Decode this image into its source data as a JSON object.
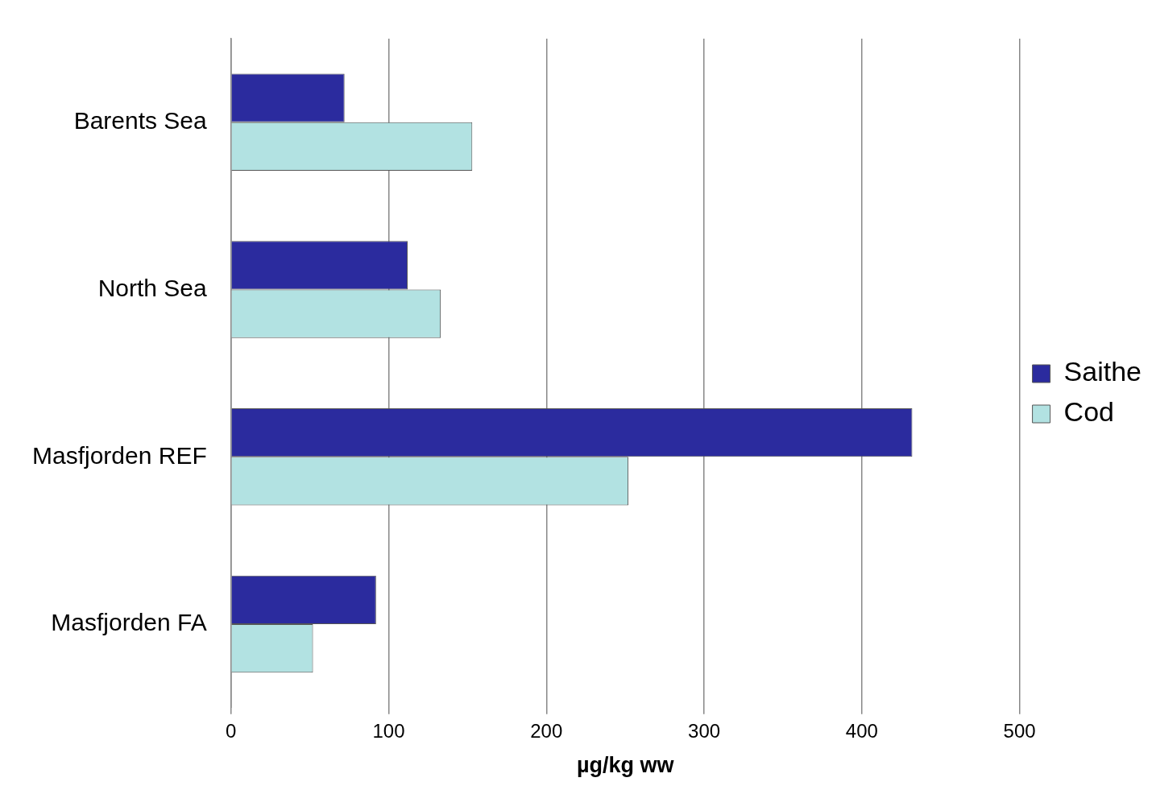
{
  "chart_data": {
    "type": "bar",
    "orientation": "horizontal",
    "categories": [
      "Barents Sea",
      "North Sea",
      "Masfjorden REF",
      "Masfjorden FA"
    ],
    "series": [
      {
        "name": "Saithe",
        "color": "#2b2b9e",
        "values": [
          72,
          112,
          432,
          92
        ]
      },
      {
        "name": "Cod",
        "color": "#b2e2e2",
        "values": [
          153,
          133,
          252,
          52
        ]
      }
    ],
    "xlabel": "µg/kg ww",
    "xlim": [
      0,
      500
    ],
    "xticks": [
      0,
      100,
      200,
      300,
      400,
      500
    ],
    "grid": "x",
    "legend": "right"
  }
}
